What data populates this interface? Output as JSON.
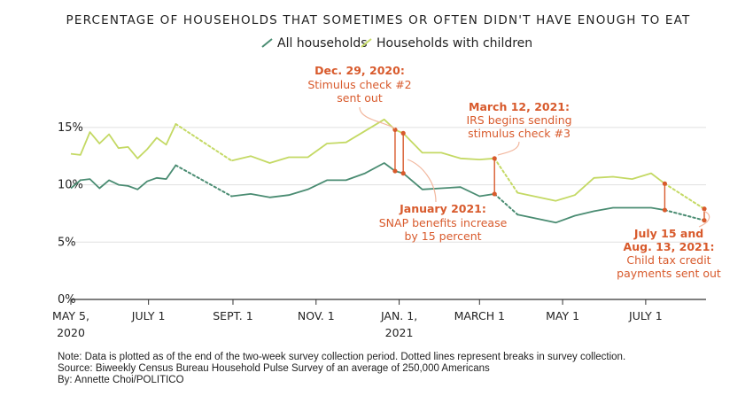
{
  "chart_data": {
    "type": "line",
    "title": "PERCENTAGE OF HOUSEHOLDS THAT SOMETIMES OR OFTEN DIDN'T HAVE ENOUGH TO EAT",
    "ylim": [
      0,
      17
    ],
    "yticks": [
      {
        "value": 0,
        "label": "0%"
      },
      {
        "value": 5,
        "label": "5%"
      },
      {
        "value": 10,
        "label": "10%"
      },
      {
        "value": 15,
        "label": "15%"
      }
    ],
    "xticks": [
      {
        "date": "2020-05-05",
        "line1": "MAY 5,",
        "line2": "2020"
      },
      {
        "date": "2020-07-01",
        "line1": "JULY 1",
        "line2": ""
      },
      {
        "date": "2020-09-01",
        "line1": "SEPT. 1",
        "line2": ""
      },
      {
        "date": "2020-11-01",
        "line1": "NOV. 1",
        "line2": ""
      },
      {
        "date": "2021-01-01",
        "line1": "JAN. 1,",
        "line2": "2021"
      },
      {
        "date": "2021-03-01",
        "line1": "MARCH 1",
        "line2": ""
      },
      {
        "date": "2021-05-01",
        "line1": "MAY 1",
        "line2": ""
      },
      {
        "date": "2021-07-01",
        "line1": "JULY 1",
        "line2": ""
      }
    ],
    "series": [
      {
        "name": "All households",
        "color": "#4a8c72",
        "segments": [
          [
            [
              "2020-05-05",
              9.7
            ],
            [
              "2020-05-12",
              10.4
            ],
            [
              "2020-05-19",
              10.5
            ],
            [
              "2020-05-26",
              9.7
            ],
            [
              "2020-06-02",
              10.4
            ],
            [
              "2020-06-09",
              10.0
            ],
            [
              "2020-06-16",
              9.9
            ],
            [
              "2020-06-23",
              9.6
            ],
            [
              "2020-06-30",
              10.3
            ],
            [
              "2020-07-07",
              10.6
            ],
            [
              "2020-07-14",
              10.5
            ],
            [
              "2020-07-21",
              11.7
            ]
          ],
          [
            [
              "2020-08-31",
              9.0
            ],
            [
              "2020-09-14",
              9.2
            ],
            [
              "2020-09-28",
              8.9
            ],
            [
              "2020-10-12",
              9.1
            ],
            [
              "2020-10-26",
              9.6
            ],
            [
              "2020-11-09",
              10.4
            ],
            [
              "2020-11-23",
              10.4
            ],
            [
              "2020-12-07",
              11.0
            ],
            [
              "2020-12-21",
              11.9
            ],
            [
              "2020-12-29",
              11.2
            ],
            [
              "2021-01-04",
              11.0
            ],
            [
              "2021-01-18",
              9.6
            ],
            [
              "2021-02-01",
              9.7
            ],
            [
              "2021-02-15",
              9.8
            ],
            [
              "2021-03-01",
              9.0
            ],
            [
              "2021-03-12",
              9.2
            ]
          ],
          [
            [
              "2021-03-29",
              7.4
            ],
            [
              "2021-04-26",
              6.7
            ],
            [
              "2021-05-10",
              7.3
            ],
            [
              "2021-05-24",
              7.7
            ],
            [
              "2021-06-07",
              8.0
            ],
            [
              "2021-06-21",
              8.0
            ],
            [
              "2021-07-05",
              8.0
            ],
            [
              "2021-07-15",
              7.8
            ]
          ]
        ],
        "dotted_segments": [
          [
            [
              "2020-07-21",
              11.7
            ],
            [
              "2020-08-31",
              9.0
            ]
          ],
          [
            [
              "2021-03-12",
              9.2
            ],
            [
              "2021-03-29",
              7.4
            ]
          ],
          [
            [
              "2021-07-15",
              7.8
            ],
            [
              "2021-08-13",
              6.9
            ]
          ]
        ]
      },
      {
        "name": "Households with children",
        "color": "#c4d964",
        "segments": [
          [
            [
              "2020-05-05",
              12.7
            ],
            [
              "2020-05-12",
              12.6
            ],
            [
              "2020-05-19",
              14.6
            ],
            [
              "2020-05-26",
              13.6
            ],
            [
              "2020-06-02",
              14.4
            ],
            [
              "2020-06-09",
              13.2
            ],
            [
              "2020-06-16",
              13.3
            ],
            [
              "2020-06-23",
              12.3
            ],
            [
              "2020-06-30",
              13.1
            ],
            [
              "2020-07-07",
              14.1
            ],
            [
              "2020-07-14",
              13.5
            ],
            [
              "2020-07-21",
              15.3
            ]
          ],
          [
            [
              "2020-08-31",
              12.1
            ],
            [
              "2020-09-14",
              12.5
            ],
            [
              "2020-09-28",
              11.9
            ],
            [
              "2020-10-12",
              12.4
            ],
            [
              "2020-10-26",
              12.4
            ],
            [
              "2020-11-09",
              13.6
            ],
            [
              "2020-11-23",
              13.7
            ],
            [
              "2020-12-07",
              14.7
            ],
            [
              "2020-12-21",
              15.7
            ],
            [
              "2020-12-29",
              14.8
            ],
            [
              "2021-01-04",
              14.5
            ],
            [
              "2021-01-18",
              12.8
            ],
            [
              "2021-02-01",
              12.8
            ],
            [
              "2021-02-15",
              12.3
            ],
            [
              "2021-03-01",
              12.2
            ],
            [
              "2021-03-12",
              12.3
            ]
          ],
          [
            [
              "2021-03-29",
              9.3
            ],
            [
              "2021-04-26",
              8.6
            ],
            [
              "2021-05-10",
              9.1
            ],
            [
              "2021-05-24",
              10.6
            ],
            [
              "2021-06-07",
              10.7
            ],
            [
              "2021-06-21",
              10.5
            ],
            [
              "2021-07-05",
              11.0
            ],
            [
              "2021-07-15",
              10.1
            ]
          ]
        ],
        "dotted_segments": [
          [
            [
              "2020-07-21",
              15.3
            ],
            [
              "2020-08-31",
              12.1
            ]
          ],
          [
            [
              "2021-03-12",
              12.3
            ],
            [
              "2021-03-29",
              9.3
            ]
          ],
          [
            [
              "2021-07-15",
              10.1
            ],
            [
              "2021-08-13",
              7.9
            ]
          ]
        ]
      }
    ],
    "event_markers": [
      {
        "date": "2020-12-29",
        "low": 11.2,
        "high": 14.8
      },
      {
        "date": "2021-01-04",
        "low": 11.0,
        "high": 14.5
      },
      {
        "date": "2021-03-12",
        "low": 9.2,
        "high": 12.3
      },
      {
        "date": "2021-07-15",
        "low": 7.8,
        "high": 10.1
      },
      {
        "date": "2021-08-13",
        "low": 6.9,
        "high": 7.9
      }
    ],
    "annotations": [
      {
        "bold": "Dec. 29, 2020:",
        "lines": [
          "Stimulus check #2",
          "sent out"
        ]
      },
      {
        "bold": "March 12, 2021:",
        "lines": [
          "IRS begins sending",
          "stimulus check #3"
        ]
      },
      {
        "bold": "January 2021:",
        "lines": [
          "SNAP benefits increase",
          "by 15 percent"
        ]
      },
      {
        "bold": "July 15 and",
        "lines": [
          "Aug. 13, 2021:",
          "Child tax credit",
          "payments sent out"
        ]
      }
    ],
    "annotation_color": "#d85a2c",
    "legend": [
      {
        "label": "All households",
        "color": "#4a8c72"
      },
      {
        "label": "Households with children",
        "color": "#c4d964"
      }
    ],
    "legend_position": "top-center",
    "grid": true
  },
  "footer": {
    "note": "Note: Data is plotted as of the end of the two-week survey collection period. Dotted lines represent breaks in survey collection.",
    "source": "Source: Biweekly Census Bureau Household Pulse Survey of an average of 250,000 Americans",
    "byline": "By: Annette Choi/POLITICO"
  }
}
